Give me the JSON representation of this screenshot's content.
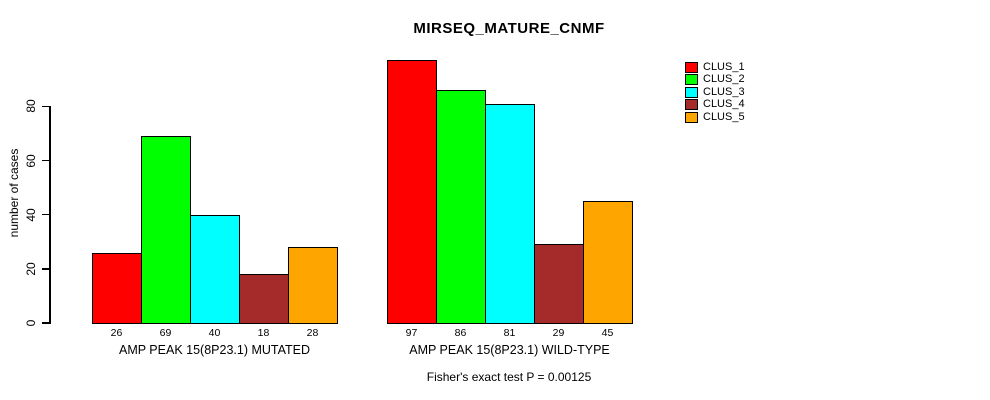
{
  "title": "MIRSEQ_MATURE_CNMF",
  "footer": "Fisher's exact test P = 0.00125",
  "chart_data": {
    "type": "bar",
    "title": "MIRSEQ_MATURE_CNMF",
    "ylabel": "number of cases",
    "xlabel": "",
    "ylim": [
      0,
      97
    ],
    "yticks": [
      0,
      20,
      40,
      60,
      80
    ],
    "grid": false,
    "legend_position": "right",
    "bar_value_labels": true,
    "annotation": "Fisher's exact test P = 0.00125",
    "legend": [
      {
        "name": "CLUS_1",
        "color": "#FF0000"
      },
      {
        "name": "CLUS_2",
        "color": "#00FF00"
      },
      {
        "name": "CLUS_3",
        "color": "#00FFFF"
      },
      {
        "name": "CLUS_4",
        "color": "#A52A2A"
      },
      {
        "name": "CLUS_5",
        "color": "#FFA500"
      }
    ],
    "categories": [
      "AMP PEAK 15(8P23.1) MUTATED",
      "AMP PEAK 15(8P23.1) WILD-TYPE"
    ],
    "series": [
      {
        "name": "CLUS_1",
        "values": [
          26,
          97
        ]
      },
      {
        "name": "CLUS_2",
        "values": [
          69,
          86
        ]
      },
      {
        "name": "CLUS_3",
        "values": [
          40,
          81
        ]
      },
      {
        "name": "CLUS_4",
        "values": [
          18,
          29
        ]
      },
      {
        "name": "CLUS_5",
        "values": [
          28,
          45
        ]
      }
    ]
  }
}
